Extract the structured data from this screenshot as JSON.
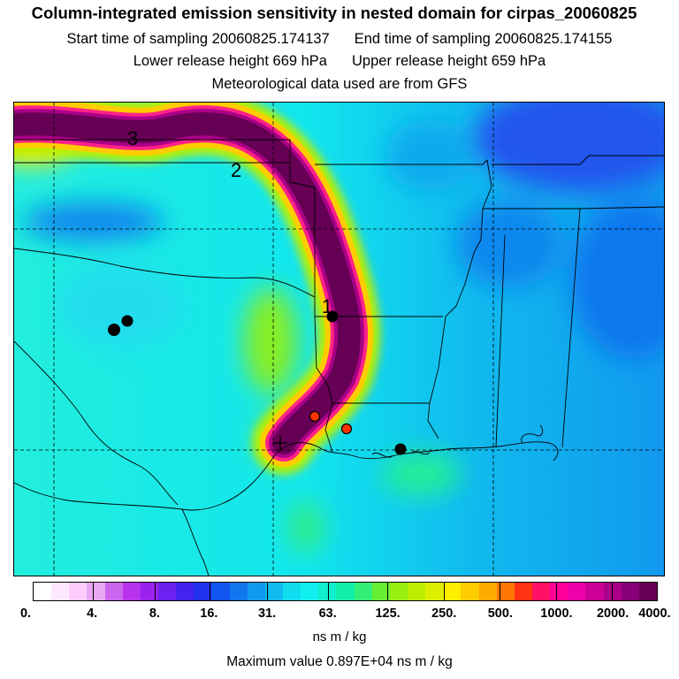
{
  "header": {
    "title": "Column-integrated emission sensitivity in nested domain for cirpas_20060825",
    "start_label": "Start time of sampling 20060825.174137",
    "end_label": "End time of sampling 20060825.174155",
    "lower_label": "Lower release height  669 hPa",
    "upper_label": "Upper release height  659 hPa",
    "met_label": "Meteorological data used are from GFS"
  },
  "map": {
    "trajectory_labels": [
      "3",
      "2",
      "1"
    ],
    "markers": [
      {
        "color": "#000000"
      },
      {
        "color": "#000000"
      },
      {
        "color": "#000000"
      },
      {
        "color": "#ff3300"
      },
      {
        "color": "#ff3300"
      },
      {
        "color": "#000000"
      }
    ]
  },
  "legend": {
    "colors": [
      "#ffffff",
      "#ffe8ff",
      "#ffccff",
      "#e7a8f4",
      "#cc66ee",
      "#b833ee",
      "#9a22ee",
      "#6b22ee",
      "#4422ee",
      "#2233ee",
      "#1155ee",
      "#1177ee",
      "#1199ee",
      "#11bbee",
      "#11ddee",
      "#11eeee",
      "#11eecc",
      "#11eeaa",
      "#33ee77",
      "#66ee33",
      "#99ee11",
      "#bbee00",
      "#ddee00",
      "#ffee00",
      "#ffcc00",
      "#ffaa00",
      "#ff7700",
      "#ff3311",
      "#ff1166",
      "#ff0099",
      "#ee00aa",
      "#cc0099",
      "#aa0088",
      "#880077",
      "#660055"
    ],
    "tick_labels": [
      "0.",
      "4.",
      "8.",
      "16.",
      "31.",
      "63.",
      "125.",
      "250.",
      "500.",
      "1000.",
      "2000.",
      "4000."
    ],
    "units": "ns m / kg",
    "max_value_label": "Maximum value  0.897E+04 ns m / kg"
  }
}
